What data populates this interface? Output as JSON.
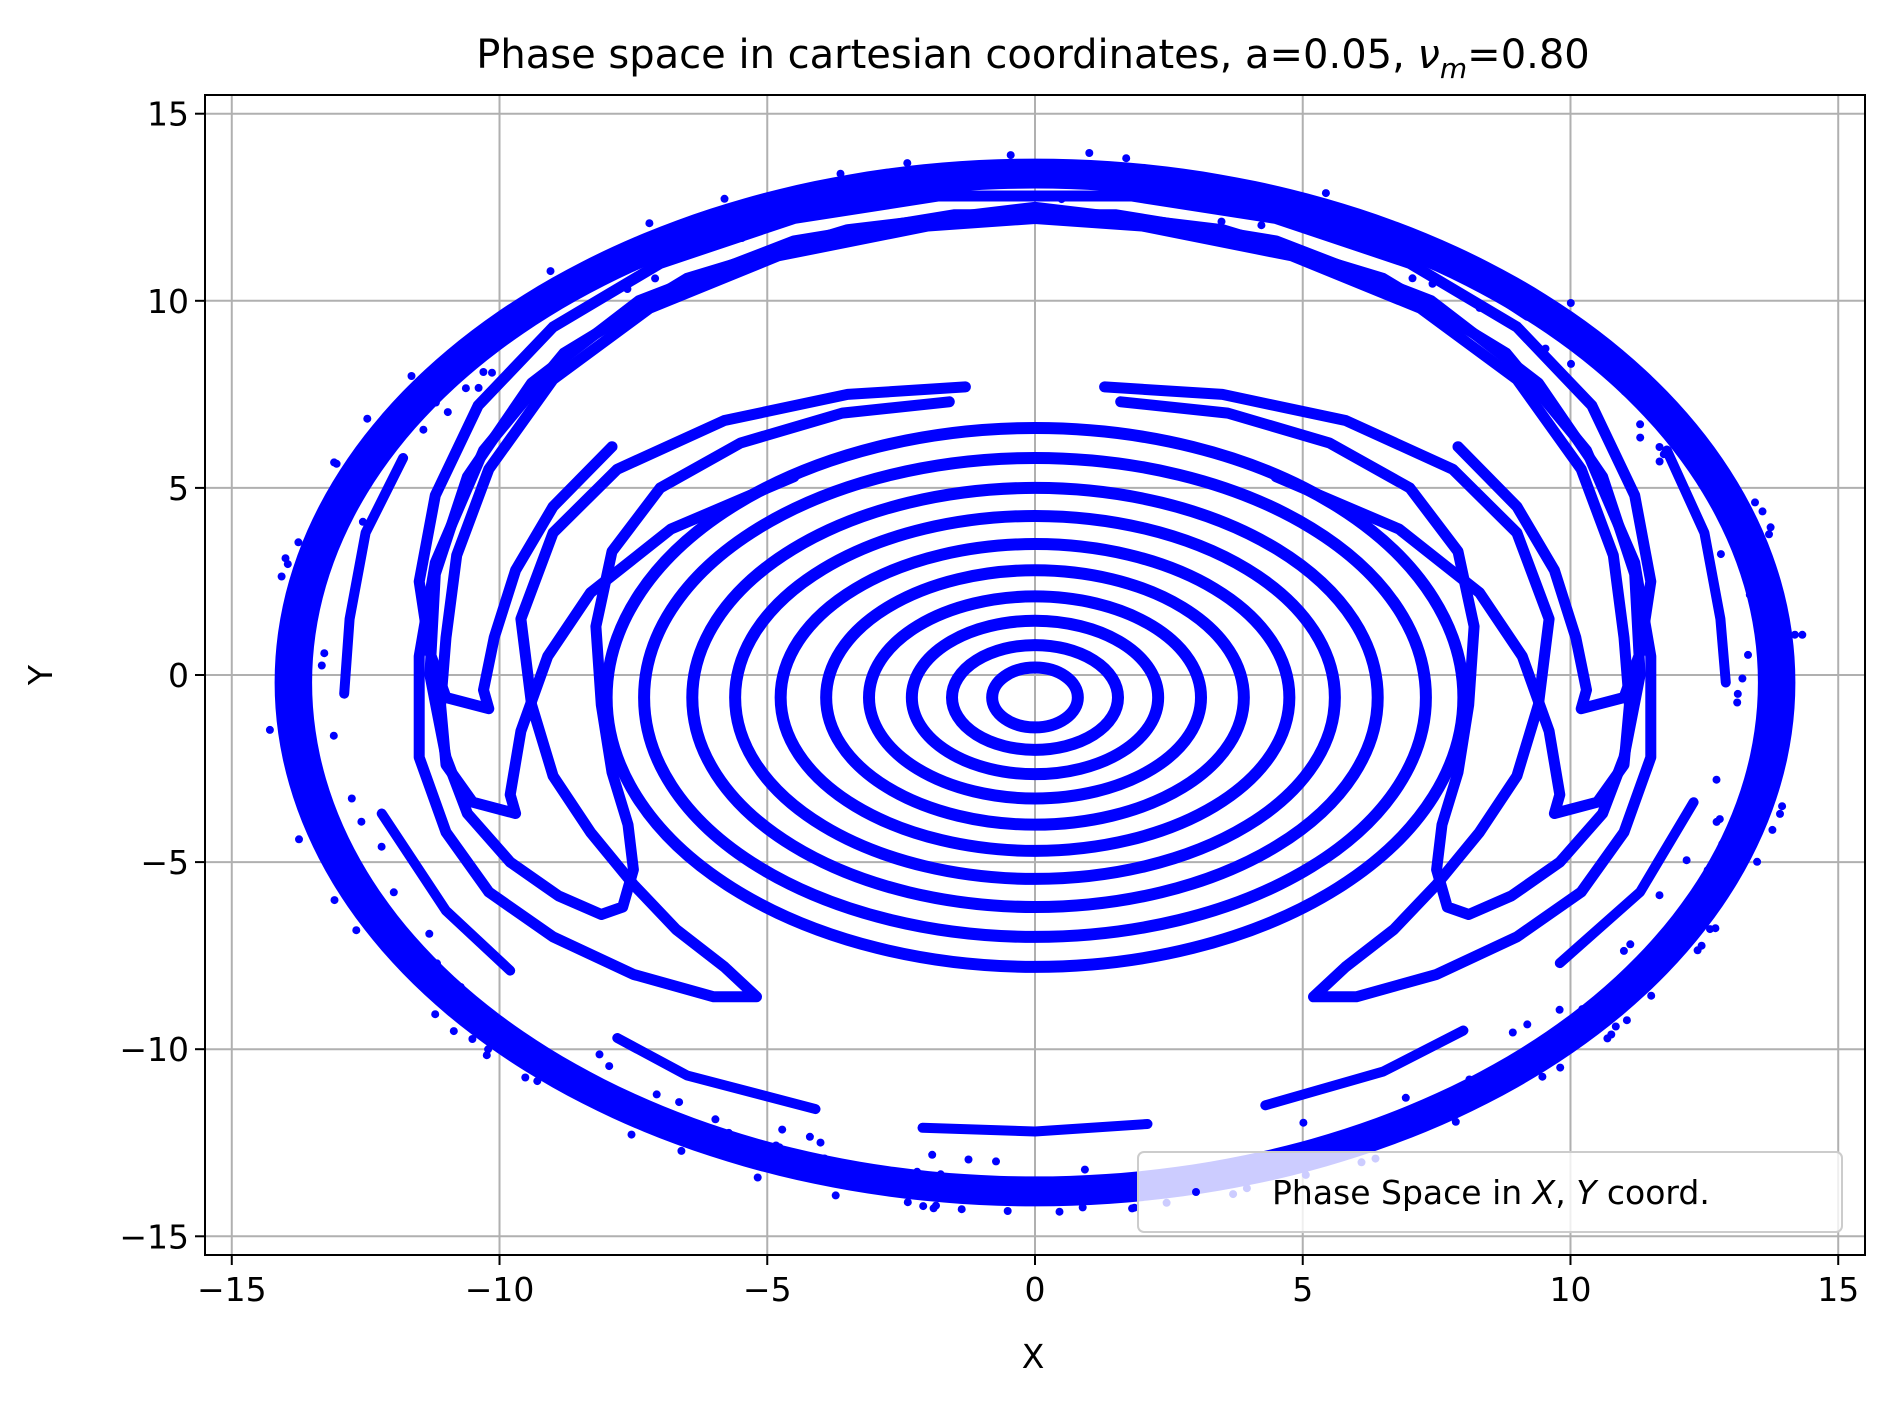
{
  "chart_data": {
    "type": "scatter",
    "title": "Phase space in cartesian coordinates, a=0.05, ",
    "title_symbol": "ν",
    "title_subscript": "m",
    "title_suffix": "=0.80",
    "xlabel": "X",
    "ylabel": "Y",
    "xlim": [
      -15.5,
      15.5
    ],
    "ylim": [
      -15.5,
      15.5
    ],
    "xticks": [
      -15,
      -10,
      -5,
      0,
      5,
      10,
      15
    ],
    "yticks": [
      -15,
      -10,
      -5,
      0,
      5,
      10,
      15
    ],
    "xtick_labels": [
      "−15",
      "−10",
      "−5",
      "0",
      "5",
      "10",
      "15"
    ],
    "ytick_labels": [
      "−15",
      "−10",
      "−5",
      "0",
      "5",
      "10",
      "15"
    ],
    "grid": true,
    "legend_position": "lower-right",
    "legend": {
      "prefix": "Phase Space in ",
      "x_var": "X",
      "separator": ", ",
      "y_var": "Y",
      "suffix": " coord."
    },
    "color": "#0000ff",
    "series": [
      {
        "kind": "rings",
        "center": [
          0,
          -0.6
        ],
        "rings": [
          [
            0.8,
            0.8
          ],
          [
            1.55,
            1.4
          ],
          [
            2.3,
            2.05
          ],
          [
            3.1,
            2.7
          ],
          [
            3.9,
            3.4
          ],
          [
            4.75,
            4.1
          ],
          [
            5.6,
            4.85
          ],
          [
            6.4,
            5.6
          ],
          [
            7.3,
            6.4
          ],
          [
            8.0,
            7.2
          ]
        ]
      },
      {
        "kind": "lobed-curves",
        "curves": [
          [
            [
              -1.3,
              7.7
            ],
            [
              -3.5,
              7.5
            ],
            [
              -5.8,
              6.8
            ],
            [
              -7.8,
              5.5
            ],
            [
              -9.0,
              3.8
            ],
            [
              -9.6,
              1.5
            ],
            [
              -9.4,
              -0.8
            ],
            [
              -9.0,
              -2.7
            ],
            [
              -8.3,
              -4.2
            ],
            [
              -7.5,
              -5.6
            ],
            [
              -6.7,
              -6.8
            ],
            [
              -5.8,
              -7.8
            ],
            [
              -5.2,
              -8.6
            ],
            [
              -6.0,
              -8.6
            ],
            [
              -7.5,
              -8.0
            ],
            [
              -9.0,
              -7.0
            ],
            [
              -10.2,
              -5.8
            ],
            [
              -11.0,
              -4.2
            ],
            [
              -11.5,
              -2.2
            ],
            [
              -11.5,
              0.5
            ],
            [
              -11.2,
              3.0
            ],
            [
              -10.3,
              6.0
            ],
            [
              -8.8,
              8.6
            ],
            [
              -6.5,
              10.6
            ],
            [
              -3.5,
              11.9
            ],
            [
              0.0,
              12.5
            ],
            [
              3.5,
              11.9
            ],
            [
              6.5,
              10.6
            ],
            [
              8.8,
              8.6
            ],
            [
              10.3,
              6.0
            ],
            [
              11.2,
              3.0
            ],
            [
              11.5,
              0.5
            ],
            [
              11.5,
              -2.2
            ],
            [
              11.0,
              -4.2
            ],
            [
              10.2,
              -5.8
            ],
            [
              9.0,
              -7.0
            ],
            [
              7.5,
              -8.0
            ],
            [
              6.0,
              -8.6
            ],
            [
              5.2,
              -8.6
            ],
            [
              5.8,
              -7.8
            ],
            [
              6.7,
              -6.8
            ],
            [
              7.5,
              -5.6
            ],
            [
              8.3,
              -4.2
            ],
            [
              9.0,
              -2.7
            ],
            [
              9.4,
              -0.8
            ],
            [
              9.6,
              1.5
            ],
            [
              9.0,
              3.8
            ],
            [
              7.8,
              5.5
            ],
            [
              5.8,
              6.8
            ],
            [
              3.5,
              7.5
            ],
            [
              1.3,
              7.7
            ]
          ],
          [
            [
              -1.6,
              7.3
            ],
            [
              -3.6,
              7.0
            ],
            [
              -5.5,
              6.2
            ],
            [
              -7.0,
              5.0
            ],
            [
              -7.9,
              3.3
            ],
            [
              -8.2,
              1.3
            ],
            [
              -8.1,
              -0.8
            ],
            [
              -7.9,
              -2.6
            ],
            [
              -7.6,
              -4.0
            ],
            [
              -7.5,
              -5.2
            ],
            [
              -7.7,
              -6.2
            ],
            [
              -8.1,
              -6.4
            ],
            [
              -8.9,
              -5.9
            ],
            [
              -9.8,
              -5.0
            ],
            [
              -10.6,
              -3.7
            ],
            [
              -11.0,
              -2.2
            ],
            [
              -11.3,
              0.0
            ],
            [
              -11.2,
              2.7
            ],
            [
              -10.6,
              5.3
            ],
            [
              -9.4,
              7.8
            ],
            [
              -7.4,
              10.0
            ],
            [
              -4.5,
              11.6
            ],
            [
              -1.5,
              12.3
            ],
            [
              1.5,
              12.3
            ],
            [
              4.5,
              11.6
            ],
            [
              7.4,
              10.0
            ],
            [
              9.4,
              7.8
            ],
            [
              10.6,
              5.3
            ],
            [
              11.2,
              2.7
            ],
            [
              11.3,
              0.0
            ],
            [
              11.0,
              -2.2
            ],
            [
              10.6,
              -3.7
            ],
            [
              9.8,
              -5.0
            ],
            [
              8.9,
              -5.9
            ],
            [
              8.1,
              -6.4
            ],
            [
              7.7,
              -6.2
            ],
            [
              7.5,
              -5.2
            ],
            [
              7.6,
              -4.0
            ],
            [
              7.9,
              -2.6
            ],
            [
              8.1,
              -0.8
            ],
            [
              8.2,
              1.3
            ],
            [
              7.9,
              3.3
            ],
            [
              7.0,
              5.0
            ],
            [
              5.5,
              6.2
            ],
            [
              3.6,
              7.0
            ],
            [
              1.6,
              7.3
            ]
          ],
          [
            [
              -4.5,
              5.3
            ],
            [
              -6.8,
              3.9
            ],
            [
              -8.3,
              2.2
            ],
            [
              -9.1,
              0.5
            ],
            [
              -9.6,
              -1.5
            ],
            [
              -9.8,
              -3.2
            ],
            [
              -9.7,
              -3.7
            ],
            [
              -10.5,
              -3.4
            ],
            [
              -11.0,
              -2.4
            ],
            [
              -11.1,
              -0.8
            ],
            [
              -11.0,
              1.0
            ],
            [
              -10.8,
              3.2
            ],
            [
              -10.2,
              5.5
            ],
            [
              -9.0,
              7.9
            ],
            [
              -7.2,
              9.8
            ],
            [
              -4.8,
              11.2
            ],
            [
              -2.0,
              12.0
            ],
            [
              0.0,
              12.2
            ],
            [
              2.0,
              12.0
            ],
            [
              4.8,
              11.2
            ],
            [
              7.2,
              9.8
            ],
            [
              9.0,
              7.9
            ],
            [
              10.2,
              5.5
            ],
            [
              10.8,
              3.2
            ],
            [
              11.0,
              1.0
            ],
            [
              11.1,
              -0.8
            ],
            [
              11.0,
              -2.4
            ],
            [
              10.5,
              -3.4
            ],
            [
              9.7,
              -3.7
            ],
            [
              9.8,
              -3.2
            ],
            [
              9.6,
              -1.5
            ],
            [
              9.1,
              0.5
            ],
            [
              8.3,
              2.2
            ],
            [
              6.8,
              3.9
            ],
            [
              4.5,
              5.3
            ]
          ],
          [
            [
              -7.9,
              6.1
            ],
            [
              -9.0,
              4.5
            ],
            [
              -9.7,
              2.8
            ],
            [
              -10.1,
              1.0
            ],
            [
              -10.3,
              -0.4
            ],
            [
              -10.2,
              -0.9
            ],
            [
              -11.0,
              -0.6
            ],
            [
              -11.3,
              0.6
            ],
            [
              -11.5,
              2.5
            ],
            [
              -11.2,
              4.8
            ],
            [
              -10.4,
              7.2
            ],
            [
              -9.0,
              9.3
            ],
            [
              -7.0,
              11.0
            ],
            [
              -4.5,
              12.2
            ],
            [
              -1.8,
              12.8
            ],
            [
              1.8,
              12.8
            ],
            [
              4.5,
              12.2
            ],
            [
              7.0,
              11.0
            ],
            [
              9.0,
              9.3
            ],
            [
              10.4,
              7.2
            ],
            [
              11.2,
              4.8
            ],
            [
              11.5,
              2.5
            ],
            [
              11.3,
              0.6
            ],
            [
              11.0,
              -0.6
            ],
            [
              10.2,
              -0.9
            ],
            [
              10.3,
              -0.4
            ],
            [
              10.1,
              1.0
            ],
            [
              9.7,
              2.8
            ],
            [
              9.0,
              4.5
            ],
            [
              7.9,
              6.1
            ]
          ]
        ]
      },
      {
        "kind": "island-chain",
        "arcs": [
          [
            [
              -9.8,
              -7.9
            ],
            [
              -11.0,
              -6.3
            ],
            [
              -12.2,
              -3.7
            ]
          ],
          [
            [
              -12.9,
              -0.5
            ],
            [
              -12.8,
              1.5
            ],
            [
              -12.5,
              3.8
            ],
            [
              -11.8,
              5.8
            ]
          ],
          [
            [
              -9.4,
              9.6
            ],
            [
              -7.5,
              11.2
            ],
            [
              -5.0,
              12.4
            ],
            [
              -2.3,
              13.2
            ]
          ],
          [
            [
              2.3,
              13.2
            ],
            [
              5.0,
              12.4
            ],
            [
              7.5,
              11.2
            ],
            [
              9.2,
              9.6
            ]
          ],
          [
            [
              11.8,
              6.0
            ],
            [
              12.5,
              3.8
            ],
            [
              12.8,
              1.5
            ],
            [
              12.9,
              -0.2
            ]
          ],
          [
            [
              12.3,
              -3.4
            ],
            [
              11.3,
              -5.8
            ],
            [
              9.8,
              -7.7
            ]
          ],
          [
            [
              8.0,
              -9.5
            ],
            [
              6.5,
              -10.6
            ],
            [
              4.3,
              -11.5
            ]
          ],
          [
            [
              2.1,
              -12.0
            ],
            [
              0.0,
              -12.2
            ],
            [
              -2.1,
              -12.1
            ]
          ],
          [
            [
              -4.1,
              -11.6
            ],
            [
              -6.5,
              -10.7
            ],
            [
              -7.8,
              -9.7
            ]
          ]
        ]
      },
      {
        "kind": "chaotic-band",
        "center": [
          0,
          -0.2
        ],
        "inner_radius": [
          13.5,
          13.2
        ],
        "outer_radius": [
          14.2,
          14.0
        ]
      }
    ]
  }
}
